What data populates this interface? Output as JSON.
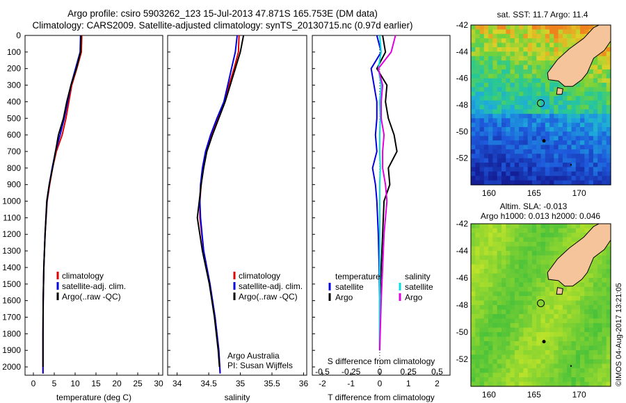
{
  "header": {
    "line1": "Argo profile: csiro 5903262_123 15-Jul-2013 47.871S 165.753E (DM data)",
    "line2": "Climatology: CARS2009. Satellite-adjusted climatology: synTS_20130715.nc (0.97d earlier)"
  },
  "stamp": "©IMOS 04-Aug-2017 13:21:05",
  "colors": {
    "climatology": "#e00000",
    "satellite": "#0000e0",
    "argo": "#000000",
    "cyan": "#00e0e0",
    "magenta": "#e000e0",
    "land": "#f5c49a"
  },
  "chart_data": [
    {
      "type": "line",
      "xlabel": "temperature (deg C)",
      "xlim": [
        -2,
        31
      ],
      "xticks": [
        "0",
        "5",
        "10",
        "15",
        "20",
        "25",
        "30"
      ],
      "ylim": [
        0,
        2050
      ],
      "yticks": [
        "0",
        "100",
        "200",
        "300",
        "400",
        "500",
        "600",
        "700",
        "800",
        "900",
        "1000",
        "1100",
        "1200",
        "1300",
        "1400",
        "1500",
        "1600",
        "1700",
        "1800",
        "1900",
        "2000"
      ],
      "legend": [
        "climatology",
        "satellite-adj. clim.",
        "Argo(..raw -QC)"
      ],
      "series": [
        {
          "name": "climatology",
          "color": "climatology",
          "x": [
            11.6,
            11.5,
            10.4,
            9.2,
            8.5,
            7.8,
            6.9,
            5.5,
            4.6,
            3.9,
            3.3,
            2.8,
            2.5,
            2.35,
            2.3,
            2.3
          ],
          "y": [
            0,
            100,
            200,
            300,
            400,
            500,
            600,
            700,
            800,
            900,
            1000,
            1200,
            1400,
            1600,
            1800,
            2040
          ]
        },
        {
          "name": "satellite-adj. clim.",
          "color": "satellite",
          "x": [
            11.3,
            11.2,
            10.1,
            9.0,
            8.2,
            7.4,
            6.4,
            5.3,
            4.5,
            3.8,
            3.25,
            2.8,
            2.5,
            2.35,
            2.3,
            2.3
          ],
          "y": [
            0,
            100,
            200,
            300,
            400,
            500,
            600,
            700,
            800,
            900,
            1000,
            1200,
            1400,
            1600,
            1800,
            2040
          ]
        },
        {
          "name": "Argo(..raw -QC)",
          "color": "argo",
          "x": [
            11.4,
            11.3,
            10.3,
            9.0,
            8.0,
            7.2,
            6.0,
            5.3,
            4.6,
            3.8,
            3.2,
            2.8,
            2.5,
            2.35,
            2.3,
            2.3
          ],
          "y": [
            0,
            100,
            200,
            300,
            400,
            500,
            600,
            700,
            800,
            900,
            1000,
            1200,
            1400,
            1600,
            1800,
            2000
          ]
        }
      ]
    },
    {
      "type": "line",
      "xlabel": "salinity",
      "xlim": [
        33.85,
        36.05
      ],
      "xticks": [
        "34",
        "34.5",
        "35",
        "35.5",
        "36"
      ],
      "ylim": [
        0,
        2050
      ],
      "legend": [
        "climatology",
        "satellite-adj. clim.",
        "Argo(..raw -QC)"
      ],
      "annotation": [
        "Argo Australia",
        "PI: Susan Wijffels"
      ],
      "series": [
        {
          "name": "climatology",
          "color": "climatology",
          "x": [
            34.98,
            34.97,
            34.9,
            34.82,
            34.75,
            34.65,
            34.55,
            34.46,
            34.41,
            34.38,
            34.36,
            34.36,
            34.42,
            34.52,
            34.6,
            34.66,
            34.68
          ],
          "y": [
            0,
            100,
            200,
            300,
            400,
            500,
            600,
            700,
            800,
            900,
            1000,
            1100,
            1300,
            1500,
            1700,
            1900,
            2040
          ]
        },
        {
          "name": "satellite-adj. clim.",
          "color": "satellite",
          "x": [
            34.95,
            34.92,
            34.86,
            34.8,
            34.74,
            34.63,
            34.53,
            34.45,
            34.4,
            34.37,
            34.36,
            34.37,
            34.42,
            34.52,
            34.6,
            34.66,
            34.68
          ],
          "y": [
            0,
            100,
            200,
            300,
            400,
            500,
            600,
            700,
            800,
            900,
            1000,
            1100,
            1300,
            1500,
            1700,
            1900,
            2040
          ]
        },
        {
          "name": "Argo(..raw -QC)",
          "color": "argo",
          "x": [
            35.05,
            35.0,
            34.92,
            34.84,
            34.76,
            34.66,
            34.56,
            34.47,
            34.42,
            34.38,
            34.35,
            34.32,
            34.4,
            34.51,
            34.59,
            34.65,
            34.67
          ],
          "y": [
            0,
            100,
            200,
            300,
            400,
            500,
            600,
            700,
            800,
            900,
            1000,
            1100,
            1300,
            1500,
            1700,
            1900,
            2000
          ]
        }
      ]
    },
    {
      "type": "line",
      "xlabel": "T difference from climatology",
      "xlabel_top": "S difference from climatology",
      "xlim": [
        -2.35,
        2.45
      ],
      "xticks": [
        "-2",
        "-1",
        "0",
        "1",
        "2"
      ],
      "xticks_top": [
        "-0.5",
        "-0.25",
        "0",
        "0.25",
        "0.5"
      ],
      "ylim": [
        0,
        2050
      ],
      "legend": {
        "left_title": "temperature",
        "right_title": "salinity",
        "left": [
          "satellite",
          "Argo"
        ],
        "right": [
          "satellite",
          "Argo"
        ]
      },
      "series": [
        {
          "name": "satellite",
          "color": "satellite",
          "x": [
            -0.1,
            0.05,
            -0.3,
            -0.2,
            -0.1,
            -0.1,
            -0.15,
            -0.1,
            -0.25,
            -0.15,
            -0.1,
            -0.05,
            -0.02,
            0.0,
            0.0
          ],
          "y": [
            0,
            100,
            200,
            300,
            400,
            500,
            600,
            700,
            800,
            900,
            1000,
            1200,
            1400,
            1600,
            1900
          ]
        },
        {
          "name": "Argo",
          "color": "argo",
          "x": [
            0.1,
            0.2,
            -0.1,
            0.25,
            0.2,
            0.3,
            0.5,
            0.6,
            0.3,
            0.35,
            0.15,
            0.1,
            0.05,
            0.0,
            0.0
          ],
          "y": [
            0,
            100,
            200,
            300,
            400,
            500,
            600,
            700,
            800,
            900,
            1000,
            1200,
            1400,
            1600,
            1900
          ]
        },
        {
          "name": "satellite",
          "color": "cyan",
          "x": [
            0.0,
            0.05,
            -0.05,
            0.05,
            0.0,
            0.02,
            0.0,
            0.0,
            0.02,
            0.0,
            0.0,
            0.0,
            0.0,
            0.0,
            0.0
          ],
          "y": [
            0,
            100,
            200,
            300,
            400,
            500,
            600,
            700,
            800,
            900,
            1000,
            1200,
            1400,
            1600,
            1900
          ]
        },
        {
          "name": "Argo",
          "color": "magenta",
          "x": [
            0.55,
            0.4,
            -0.05,
            0.1,
            0.05,
            0.05,
            0.15,
            0.1,
            0.1,
            0.2,
            0.25,
            0.15,
            0.1,
            0.05,
            0.0
          ],
          "y": [
            0,
            100,
            200,
            300,
            400,
            500,
            600,
            700,
            800,
            900,
            1000,
            1200,
            1400,
            1600,
            1900
          ]
        }
      ]
    },
    {
      "type": "heatmap",
      "title": "sat. SST: 11.7 Argo: 11.4",
      "xlim": [
        158,
        173.5
      ],
      "ylim": [
        -54,
        -42
      ],
      "xticks": [
        "160",
        "165",
        "170"
      ],
      "yticks": [
        "-42",
        "-44",
        "-46",
        "-48",
        "-50",
        "-52"
      ],
      "profile_location": [
        165.753,
        -47.871
      ]
    },
    {
      "type": "heatmap",
      "title": [
        "Altim. SLA: -0.013",
        "Argo h1000: 0.013 h2000: 0.046"
      ],
      "xlim": [
        158,
        173.5
      ],
      "ylim": [
        -54,
        -42
      ],
      "xticks": [
        "160",
        "165",
        "170"
      ],
      "yticks": [
        "-42",
        "-44",
        "-46",
        "-48",
        "-50",
        "-52"
      ],
      "profile_location": [
        165.753,
        -47.871
      ]
    }
  ]
}
